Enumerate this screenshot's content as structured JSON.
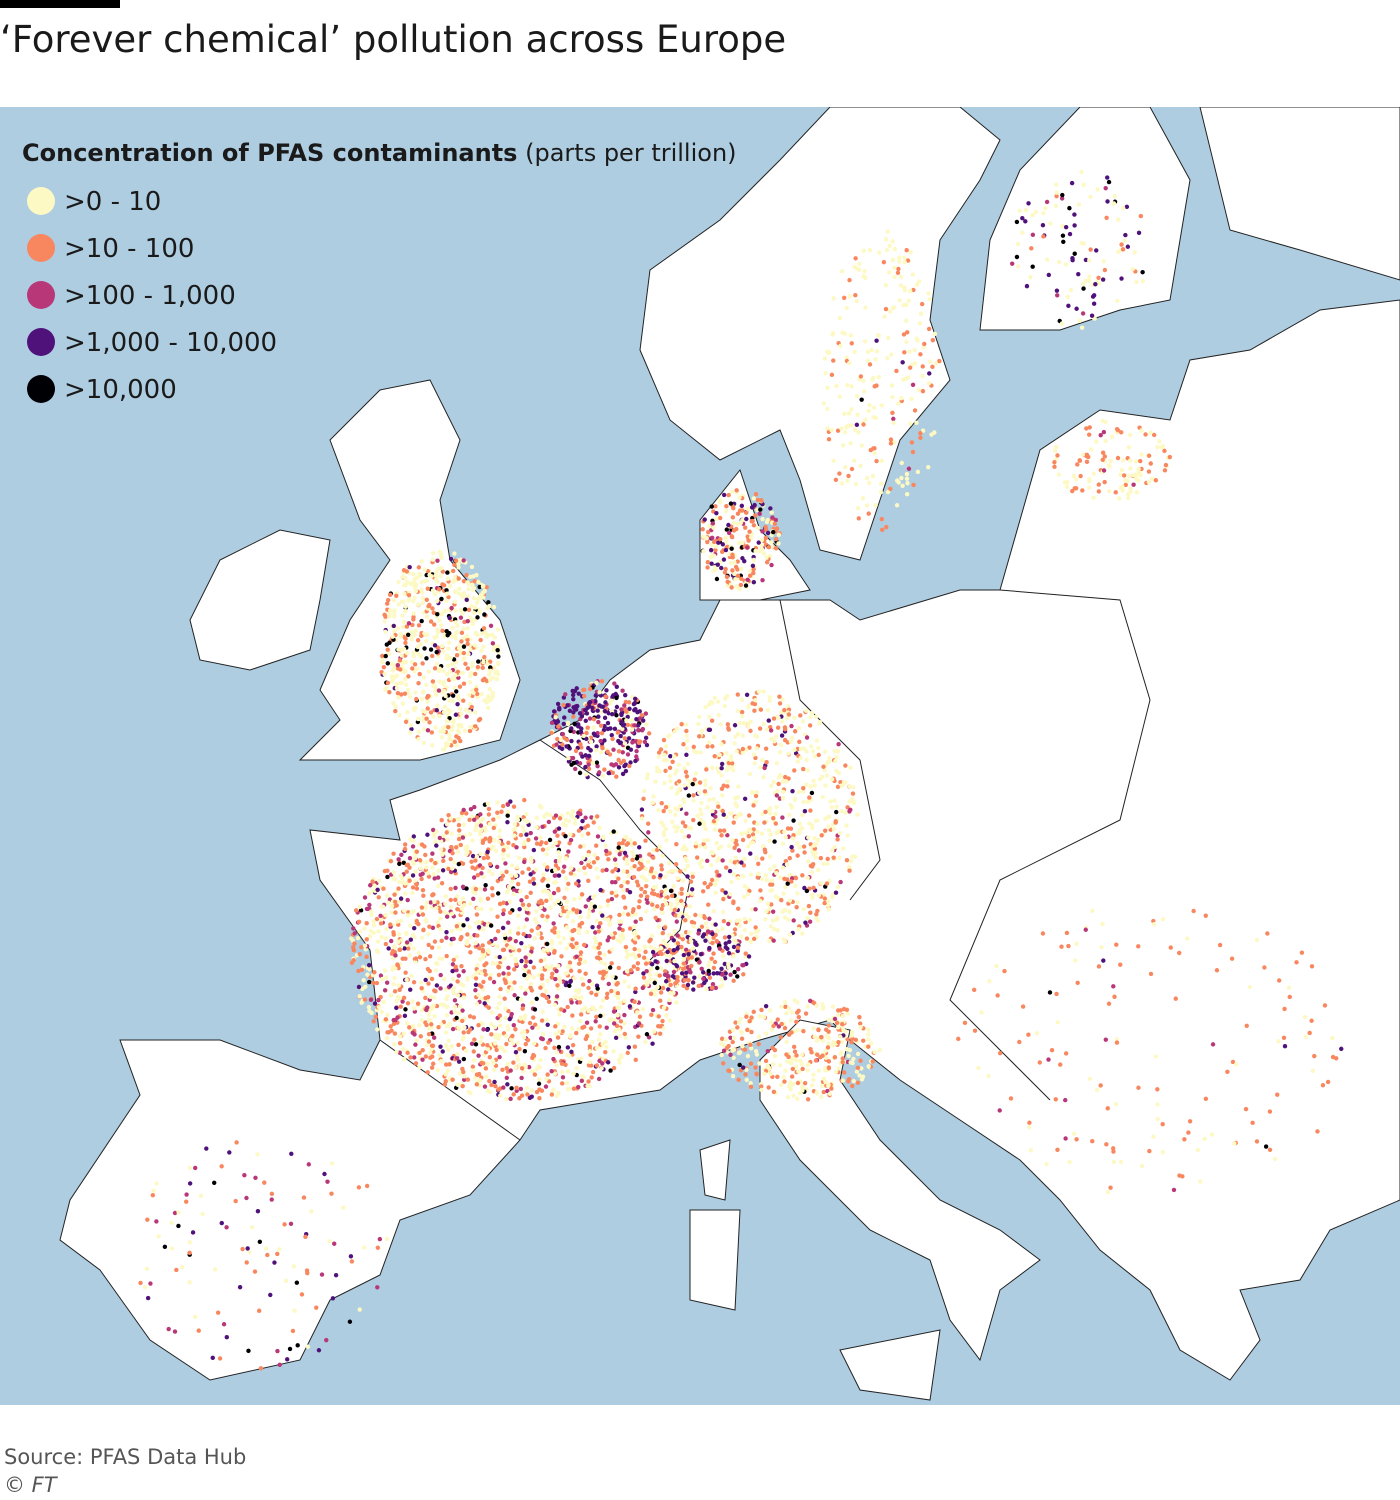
{
  "title": "‘Forever chemical’ pollution across Europe",
  "legend": {
    "heading": "Concentration of PFAS contaminants",
    "unit": "(parts per trillion)",
    "items": [
      {
        "label": ">0 - 10",
        "color": "#fdf9c4"
      },
      {
        "label": ">10 - 100",
        "color": "#f8875f"
      },
      {
        "label": ">100 - 1,000",
        "color": "#b83779"
      },
      {
        "label": ">1,000 - 10,000",
        "color": "#4f127b"
      },
      {
        "label": ">10,000",
        "color": "#000004"
      }
    ]
  },
  "source": "Source: PFAS Data Hub",
  "copyright": "© FT"
}
